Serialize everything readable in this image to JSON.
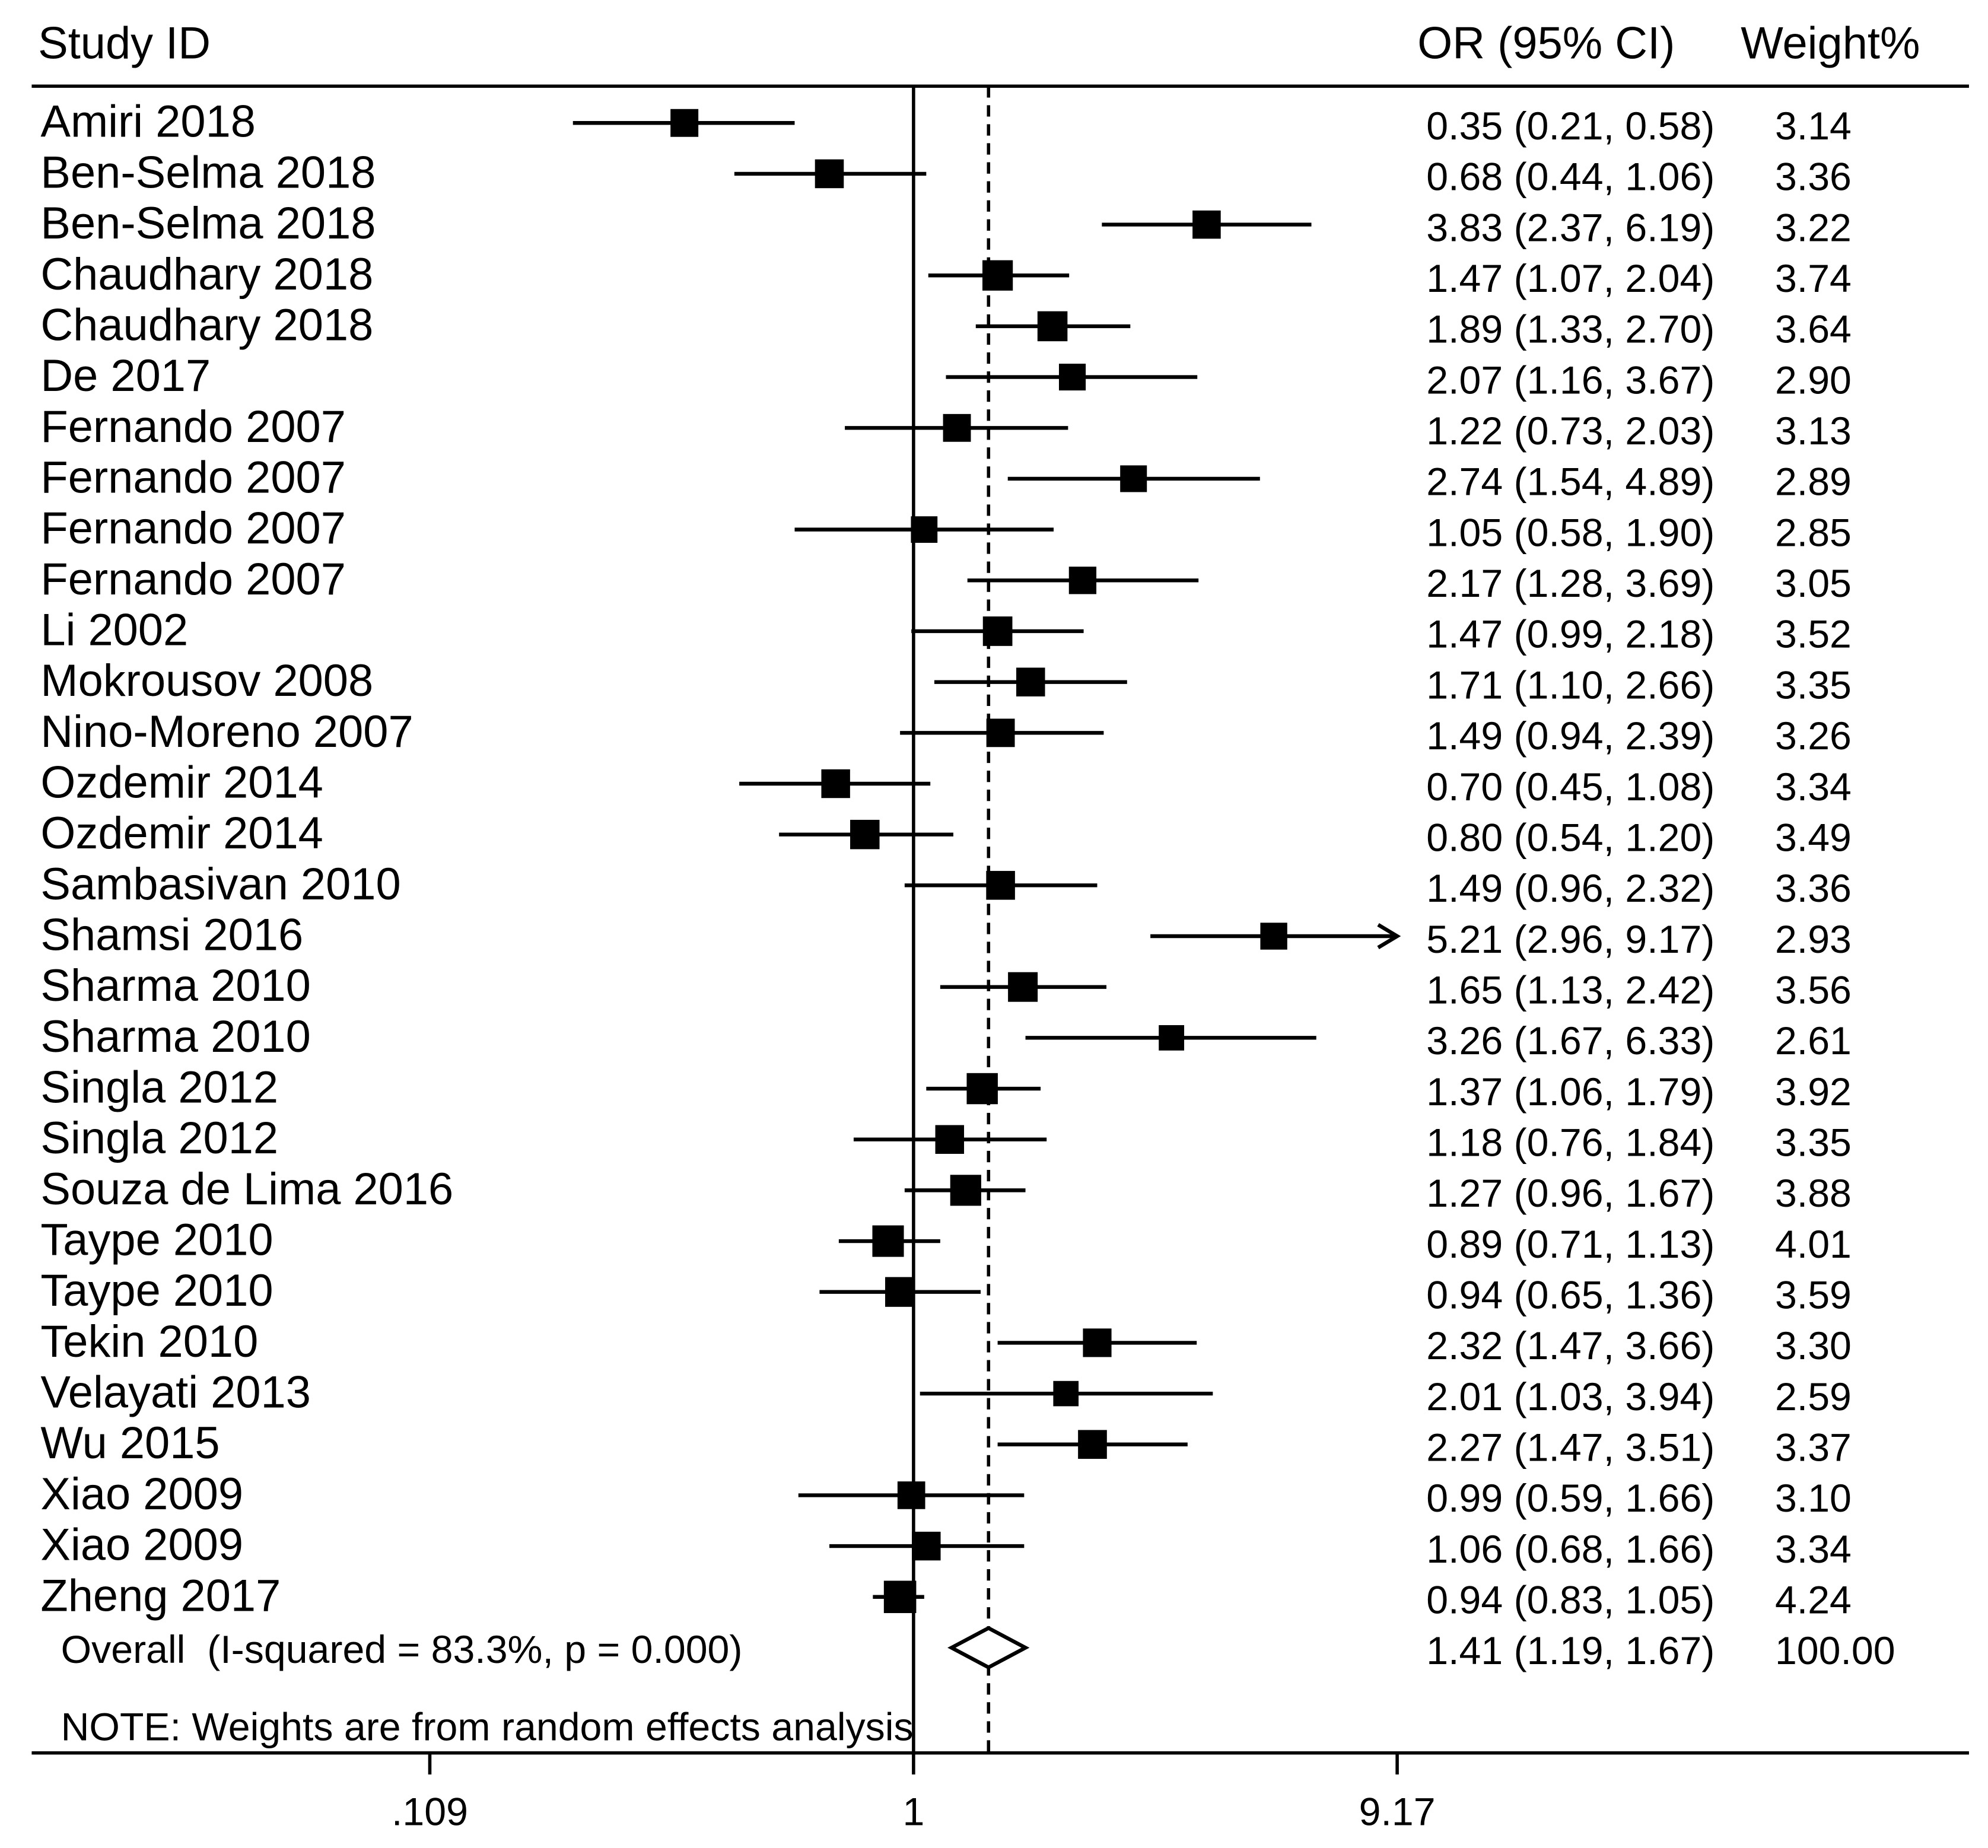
{
  "chart_data": {
    "type": "scatter",
    "columns": {
      "study": "Study ID",
      "or_ci": "OR (95% CI)",
      "weight": "Weight%"
    },
    "studies": [
      {
        "id": "Amiri 2018",
        "or": 0.35,
        "lower": 0.21,
        "upper": 0.58,
        "or_ci": "0.35 (0.21, 0.58)",
        "weight": "3.14"
      },
      {
        "id": "Ben-Selma 2018",
        "or": 0.68,
        "lower": 0.44,
        "upper": 1.06,
        "or_ci": "0.68 (0.44, 1.06)",
        "weight": "3.36"
      },
      {
        "id": "Ben-Selma 2018",
        "or": 3.83,
        "lower": 2.37,
        "upper": 6.19,
        "or_ci": "3.83 (2.37, 6.19)",
        "weight": "3.22"
      },
      {
        "id": "Chaudhary 2018",
        "or": 1.47,
        "lower": 1.07,
        "upper": 2.04,
        "or_ci": "1.47 (1.07, 2.04)",
        "weight": "3.74"
      },
      {
        "id": "Chaudhary 2018",
        "or": 1.89,
        "lower": 1.33,
        "upper": 2.7,
        "or_ci": "1.89 (1.33, 2.70)",
        "weight": "3.64"
      },
      {
        "id": "De 2017",
        "or": 2.07,
        "lower": 1.16,
        "upper": 3.67,
        "or_ci": "2.07 (1.16, 3.67)",
        "weight": "2.90"
      },
      {
        "id": "Fernando 2007",
        "or": 1.22,
        "lower": 0.73,
        "upper": 2.03,
        "or_ci": "1.22 (0.73, 2.03)",
        "weight": "3.13"
      },
      {
        "id": "Fernando 2007",
        "or": 2.74,
        "lower": 1.54,
        "upper": 4.89,
        "or_ci": "2.74 (1.54, 4.89)",
        "weight": "2.89"
      },
      {
        "id": "Fernando 2007",
        "or": 1.05,
        "lower": 0.58,
        "upper": 1.9,
        "or_ci": "1.05 (0.58, 1.90)",
        "weight": "2.85"
      },
      {
        "id": "Fernando 2007",
        "or": 2.17,
        "lower": 1.28,
        "upper": 3.69,
        "or_ci": "2.17 (1.28, 3.69)",
        "weight": "3.05"
      },
      {
        "id": "Li 2002",
        "or": 1.47,
        "lower": 0.99,
        "upper": 2.18,
        "or_ci": "1.47 (0.99, 2.18)",
        "weight": "3.52"
      },
      {
        "id": "Mokrousov 2008",
        "or": 1.71,
        "lower": 1.1,
        "upper": 2.66,
        "or_ci": "1.71 (1.10, 2.66)",
        "weight": "3.35"
      },
      {
        "id": "Nino-Moreno 2007",
        "or": 1.49,
        "lower": 0.94,
        "upper": 2.39,
        "or_ci": "1.49 (0.94, 2.39)",
        "weight": "3.26"
      },
      {
        "id": "Ozdemir 2014",
        "or": 0.7,
        "lower": 0.45,
        "upper": 1.08,
        "or_ci": "0.70 (0.45, 1.08)",
        "weight": "3.34"
      },
      {
        "id": "Ozdemir 2014",
        "or": 0.8,
        "lower": 0.54,
        "upper": 1.2,
        "or_ci": "0.80 (0.54, 1.20)",
        "weight": "3.49"
      },
      {
        "id": "Sambasivan 2010",
        "or": 1.49,
        "lower": 0.96,
        "upper": 2.32,
        "or_ci": "1.49 (0.96, 2.32)",
        "weight": "3.36"
      },
      {
        "id": "Shamsi 2016",
        "or": 5.21,
        "lower": 2.96,
        "upper": 9.17,
        "or_ci": "5.21 (2.96, 9.17)",
        "weight": "2.93"
      },
      {
        "id": "Sharma 2010",
        "or": 1.65,
        "lower": 1.13,
        "upper": 2.42,
        "or_ci": "1.65 (1.13, 2.42)",
        "weight": "3.56"
      },
      {
        "id": "Sharma 2010",
        "or": 3.26,
        "lower": 1.67,
        "upper": 6.33,
        "or_ci": "3.26 (1.67, 6.33)",
        "weight": "2.61"
      },
      {
        "id": "Singla 2012",
        "or": 1.37,
        "lower": 1.06,
        "upper": 1.79,
        "or_ci": "1.37 (1.06, 1.79)",
        "weight": "3.92"
      },
      {
        "id": "Singla 2012",
        "or": 1.18,
        "lower": 0.76,
        "upper": 1.84,
        "or_ci": "1.18 (0.76, 1.84)",
        "weight": "3.35"
      },
      {
        "id": "Souza de Lima 2016",
        "or": 1.27,
        "lower": 0.96,
        "upper": 1.67,
        "or_ci": "1.27 (0.96, 1.67)",
        "weight": "3.88"
      },
      {
        "id": "Taype 2010",
        "or": 0.89,
        "lower": 0.71,
        "upper": 1.13,
        "or_ci": "0.89 (0.71, 1.13)",
        "weight": "4.01"
      },
      {
        "id": "Taype 2010",
        "or": 0.94,
        "lower": 0.65,
        "upper": 1.36,
        "or_ci": "0.94 (0.65, 1.36)",
        "weight": "3.59"
      },
      {
        "id": "Tekin 2010",
        "or": 2.32,
        "lower": 1.47,
        "upper": 3.66,
        "or_ci": "2.32 (1.47, 3.66)",
        "weight": "3.30"
      },
      {
        "id": "Velayati 2013",
        "or": 2.01,
        "lower": 1.03,
        "upper": 3.94,
        "or_ci": "2.01 (1.03, 3.94)",
        "weight": "2.59"
      },
      {
        "id": "Wu 2015",
        "or": 2.27,
        "lower": 1.47,
        "upper": 3.51,
        "or_ci": "2.27 (1.47, 3.51)",
        "weight": "3.37"
      },
      {
        "id": "Xiao 2009",
        "or": 0.99,
        "lower": 0.59,
        "upper": 1.66,
        "or_ci": "0.99 (0.59, 1.66)",
        "weight": "3.10"
      },
      {
        "id": "Xiao 2009",
        "or": 1.06,
        "lower": 0.68,
        "upper": 1.66,
        "or_ci": "1.06 (0.68, 1.66)",
        "weight": "3.34"
      },
      {
        "id": "Zheng 2017",
        "or": 0.94,
        "lower": 0.83,
        "upper": 1.05,
        "or_ci": "0.94 (0.83, 1.05)",
        "weight": "4.24"
      }
    ],
    "overall": {
      "label": "Overall  (I-squared = 83.3%, p = 0.000)",
      "or": 1.41,
      "lower": 1.19,
      "upper": 1.67,
      "or_ci": "1.41 (1.19, 1.67)",
      "weight": "100.00"
    },
    "note": "NOTE: Weights are from random effects analysis",
    "null_value": 1,
    "x_ticks": [
      {
        "value": 0.109,
        "label": ".109"
      },
      {
        "value": 1,
        "label": "1"
      },
      {
        "value": 9.17,
        "label": "9.17"
      }
    ]
  }
}
